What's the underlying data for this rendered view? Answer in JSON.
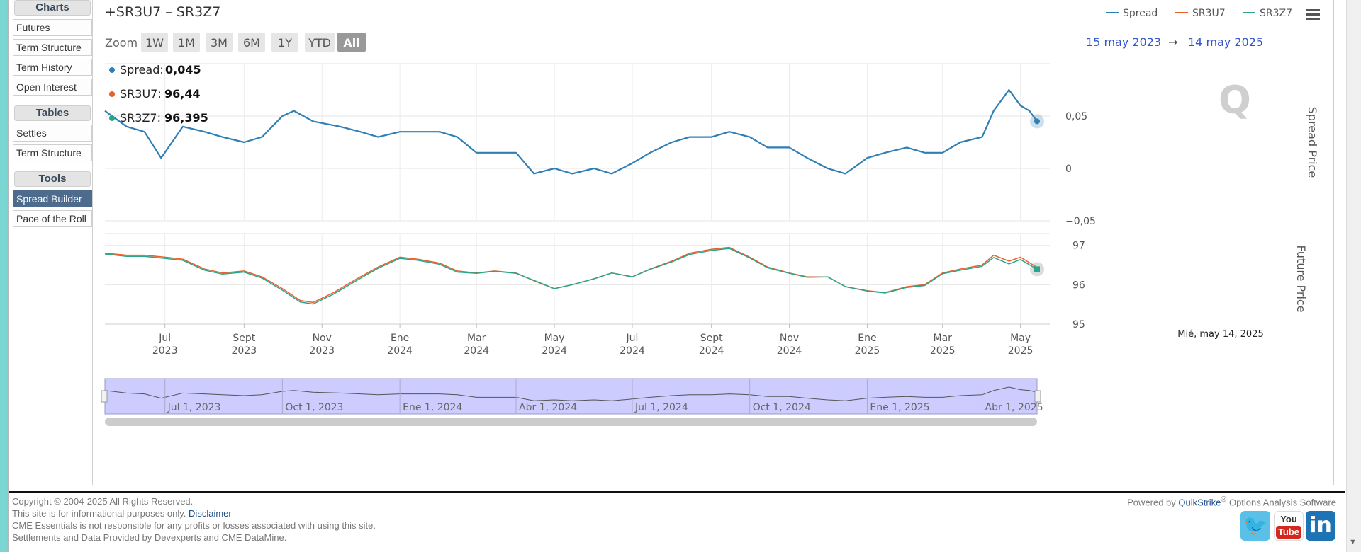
{
  "sidebar": {
    "charts_heading": "Charts",
    "charts_items": [
      "Futures",
      "Term Structure",
      "Term History",
      "Open Interest"
    ],
    "tables_heading": "Tables",
    "tables_items": [
      "Settles",
      "Term Structure"
    ],
    "tools_heading": "Tools",
    "tools_items": [
      "Spread Builder",
      "Pace of the Roll"
    ],
    "active_item": "Spread Builder"
  },
  "chart": {
    "title": "+SR3U7 – SR3Z7",
    "zoom_label": "Zoom",
    "zoom_buttons": [
      "1W",
      "1M",
      "3M",
      "6M",
      "1Y",
      "YTD",
      "All"
    ],
    "zoom_active": "All",
    "range_from": "15 may 2023",
    "range_arrow": "→",
    "range_to": "14 may 2025",
    "menu_icon": "hamburger-menu-icon",
    "watermark": "Q",
    "tooltip": {
      "spread_label": "Spread:",
      "spread_value": "0,045",
      "u7_label": "SR3U7:",
      "u7_value": "96,44",
      "z7_label": "SR3Z7:",
      "z7_value": "96,395"
    },
    "hover_date": "Mié, may 14, 2025",
    "navigator_labels": [
      "Jul 1, 2023",
      "Oct 1, 2023",
      "Ene 1, 2024",
      "Abr 1, 2024",
      "Jul 1, 2024",
      "Oct 1, 2024",
      "Ene 1, 2025",
      "Abr 1, 2025"
    ]
  },
  "chart_data": {
    "type": "line",
    "x_range": [
      "2023-05-15",
      "2025-05-14"
    ],
    "legend": [
      "Spread",
      "SR3U7",
      "SR3Z7"
    ],
    "legend_position": "top-right",
    "colors": {
      "Spread": "#2f7fb5",
      "SR3U7": "#e8602c",
      "SR3Z7": "#2aa58a"
    },
    "spread_panel": {
      "ylabel": "Spread Price",
      "yticks": [
        "0,05",
        "0",
        "−0,05"
      ],
      "tick_values": [
        0.05,
        0,
        -0.05
      ],
      "ylim": [
        -0.05,
        0.1
      ],
      "series": [
        {
          "name": "Spread",
          "points": [
            [
              "2023-05-15",
              0.055
            ],
            [
              "2023-06-01",
              0.04
            ],
            [
              "2023-06-15",
              0.035
            ],
            [
              "2023-06-28",
              0.01
            ],
            [
              "2023-07-15",
              0.04
            ],
            [
              "2023-08-01",
              0.035
            ],
            [
              "2023-08-15",
              0.03
            ],
            [
              "2023-09-01",
              0.025
            ],
            [
              "2023-09-15",
              0.03
            ],
            [
              "2023-10-01",
              0.05
            ],
            [
              "2023-10-10",
              0.055
            ],
            [
              "2023-10-25",
              0.045
            ],
            [
              "2023-11-15",
              0.04
            ],
            [
              "2023-12-01",
              0.035
            ],
            [
              "2023-12-15",
              0.03
            ],
            [
              "2024-01-01",
              0.035
            ],
            [
              "2024-01-15",
              0.035
            ],
            [
              "2024-02-01",
              0.035
            ],
            [
              "2024-02-15",
              0.03
            ],
            [
              "2024-03-01",
              0.015
            ],
            [
              "2024-03-15",
              0.015
            ],
            [
              "2024-04-01",
              0.015
            ],
            [
              "2024-04-15",
              -0.005
            ],
            [
              "2024-05-01",
              0.0
            ],
            [
              "2024-05-15",
              -0.005
            ],
            [
              "2024-06-01",
              0.0
            ],
            [
              "2024-06-15",
              -0.005
            ],
            [
              "2024-07-01",
              0.005
            ],
            [
              "2024-07-15",
              0.015
            ],
            [
              "2024-08-01",
              0.025
            ],
            [
              "2024-08-15",
              0.03
            ],
            [
              "2024-09-01",
              0.03
            ],
            [
              "2024-09-15",
              0.035
            ],
            [
              "2024-10-01",
              0.03
            ],
            [
              "2024-10-15",
              0.02
            ],
            [
              "2024-11-01",
              0.02
            ],
            [
              "2024-11-15",
              0.01
            ],
            [
              "2024-12-01",
              0.0
            ],
            [
              "2024-12-15",
              -0.005
            ],
            [
              "2025-01-01",
              0.01
            ],
            [
              "2025-01-15",
              0.015
            ],
            [
              "2025-02-01",
              0.02
            ],
            [
              "2025-02-15",
              0.015
            ],
            [
              "2025-03-01",
              0.015
            ],
            [
              "2025-03-15",
              0.025
            ],
            [
              "2025-04-01",
              0.03
            ],
            [
              "2025-04-10",
              0.055
            ],
            [
              "2025-04-22",
              0.075
            ],
            [
              "2025-05-01",
              0.06
            ],
            [
              "2025-05-08",
              0.055
            ],
            [
              "2025-05-14",
              0.045
            ]
          ]
        }
      ]
    },
    "future_panel": {
      "ylabel": "Future Price",
      "yticks": [
        "97",
        "96",
        "95"
      ],
      "tick_values": [
        97,
        96,
        95
      ],
      "ylim": [
        95,
        97.3
      ],
      "series": [
        {
          "name": "SR3U7",
          "points": [
            [
              "2023-05-15",
              96.8
            ],
            [
              "2023-06-01",
              96.75
            ],
            [
              "2023-06-15",
              96.75
            ],
            [
              "2023-07-01",
              96.7
            ],
            [
              "2023-07-15",
              96.65
            ],
            [
              "2023-08-01",
              96.4
            ],
            [
              "2023-08-15",
              96.3
            ],
            [
              "2023-09-01",
              96.35
            ],
            [
              "2023-09-15",
              96.2
            ],
            [
              "2023-10-01",
              95.9
            ],
            [
              "2023-10-15",
              95.6
            ],
            [
              "2023-10-25",
              95.55
            ],
            [
              "2023-11-10",
              95.8
            ],
            [
              "2023-12-01",
              96.2
            ],
            [
              "2023-12-15",
              96.45
            ],
            [
              "2024-01-01",
              96.7
            ],
            [
              "2024-01-15",
              96.65
            ],
            [
              "2024-02-01",
              96.55
            ],
            [
              "2024-02-15",
              96.35
            ],
            [
              "2024-03-01",
              96.3
            ],
            [
              "2024-03-15",
              96.35
            ],
            [
              "2024-04-01",
              96.3
            ],
            [
              "2024-04-15",
              96.1
            ],
            [
              "2024-05-01",
              95.9
            ],
            [
              "2024-05-15",
              96.0
            ],
            [
              "2024-06-01",
              96.15
            ],
            [
              "2024-06-15",
              96.3
            ],
            [
              "2024-07-01",
              96.2
            ],
            [
              "2024-07-15",
              96.4
            ],
            [
              "2024-08-01",
              96.6
            ],
            [
              "2024-08-15",
              96.8
            ],
            [
              "2024-09-01",
              96.9
            ],
            [
              "2024-09-15",
              96.95
            ],
            [
              "2024-10-01",
              96.7
            ],
            [
              "2024-10-15",
              96.45
            ],
            [
              "2024-11-01",
              96.3
            ],
            [
              "2024-11-15",
              96.2
            ],
            [
              "2024-12-01",
              96.2
            ],
            [
              "2024-12-15",
              95.95
            ],
            [
              "2025-01-01",
              95.85
            ],
            [
              "2025-01-15",
              95.8
            ],
            [
              "2025-02-01",
              95.95
            ],
            [
              "2025-02-15",
              96.0
            ],
            [
              "2025-03-01",
              96.3
            ],
            [
              "2025-03-15",
              96.4
            ],
            [
              "2025-04-01",
              96.5
            ],
            [
              "2025-04-10",
              96.75
            ],
            [
              "2025-04-22",
              96.6
            ],
            [
              "2025-05-01",
              96.7
            ],
            [
              "2025-05-14",
              96.44
            ]
          ]
        },
        {
          "name": "SR3Z7",
          "points": [
            [
              "2023-05-15",
              96.78
            ],
            [
              "2023-06-01",
              96.72
            ],
            [
              "2023-06-15",
              96.72
            ],
            [
              "2023-07-01",
              96.67
            ],
            [
              "2023-07-15",
              96.62
            ],
            [
              "2023-08-01",
              96.37
            ],
            [
              "2023-08-15",
              96.27
            ],
            [
              "2023-09-01",
              96.32
            ],
            [
              "2023-09-15",
              96.17
            ],
            [
              "2023-10-01",
              95.86
            ],
            [
              "2023-10-15",
              95.56
            ],
            [
              "2023-10-25",
              95.51
            ],
            [
              "2023-11-10",
              95.76
            ],
            [
              "2023-12-01",
              96.16
            ],
            [
              "2023-12-15",
              96.42
            ],
            [
              "2024-01-01",
              96.67
            ],
            [
              "2024-01-15",
              96.62
            ],
            [
              "2024-02-01",
              96.52
            ],
            [
              "2024-02-15",
              96.32
            ],
            [
              "2024-03-01",
              96.29
            ],
            [
              "2024-03-15",
              96.34
            ],
            [
              "2024-04-01",
              96.29
            ],
            [
              "2024-04-15",
              96.11
            ],
            [
              "2024-05-01",
              95.9
            ],
            [
              "2024-05-15",
              96.0
            ],
            [
              "2024-06-01",
              96.15
            ],
            [
              "2024-06-15",
              96.3
            ],
            [
              "2024-07-01",
              96.2
            ],
            [
              "2024-07-15",
              96.39
            ],
            [
              "2024-08-01",
              96.58
            ],
            [
              "2024-08-15",
              96.77
            ],
            [
              "2024-09-01",
              96.87
            ],
            [
              "2024-09-15",
              96.92
            ],
            [
              "2024-10-01",
              96.68
            ],
            [
              "2024-10-15",
              96.43
            ],
            [
              "2024-11-01",
              96.29
            ],
            [
              "2024-11-15",
              96.19
            ],
            [
              "2024-12-01",
              96.2
            ],
            [
              "2024-12-15",
              95.95
            ],
            [
              "2025-01-01",
              95.84
            ],
            [
              "2025-01-15",
              95.79
            ],
            [
              "2025-02-01",
              95.93
            ],
            [
              "2025-02-15",
              95.98
            ],
            [
              "2025-03-01",
              96.28
            ],
            [
              "2025-03-15",
              96.37
            ],
            [
              "2025-04-01",
              96.47
            ],
            [
              "2025-04-10",
              96.69
            ],
            [
              "2025-04-22",
              96.53
            ],
            [
              "2025-05-01",
              96.64
            ],
            [
              "2025-05-14",
              96.395
            ]
          ]
        }
      ]
    },
    "x_ticks": [
      {
        "date": "2023-07-01",
        "month": "Jul",
        "year": "2023"
      },
      {
        "date": "2023-09-01",
        "month": "Sept",
        "year": "2023"
      },
      {
        "date": "2023-11-01",
        "month": "Nov",
        "year": "2023"
      },
      {
        "date": "2024-01-01",
        "month": "Ene",
        "year": "2024"
      },
      {
        "date": "2024-03-01",
        "month": "Mar",
        "year": "2024"
      },
      {
        "date": "2024-05-01",
        "month": "May",
        "year": "2024"
      },
      {
        "date": "2024-07-01",
        "month": "Jul",
        "year": "2024"
      },
      {
        "date": "2024-09-01",
        "month": "Sept",
        "year": "2024"
      },
      {
        "date": "2024-11-01",
        "month": "Nov",
        "year": "2024"
      },
      {
        "date": "2025-01-01",
        "month": "Ene",
        "year": "2025"
      },
      {
        "date": "2025-03-01",
        "month": "Mar",
        "year": "2025"
      },
      {
        "date": "2025-05-01",
        "month": "May",
        "year": "2025"
      }
    ]
  },
  "footer": {
    "copyright": "Copyright © 2004-2025 All Rights Reserved.",
    "info": "This site is for informational purposes only.",
    "disclaimer_link": "Disclaimer",
    "responsibility": "CME Essentials is not responsible for any profits or losses associated with using this site.",
    "provided_by": "Settlements and Data Provided by Devexperts and CME DataMine.",
    "powered_by": "Powered by",
    "brand": "QuikStrike",
    "brand_suffix": "Options Analysis Software",
    "registered": "®"
  }
}
